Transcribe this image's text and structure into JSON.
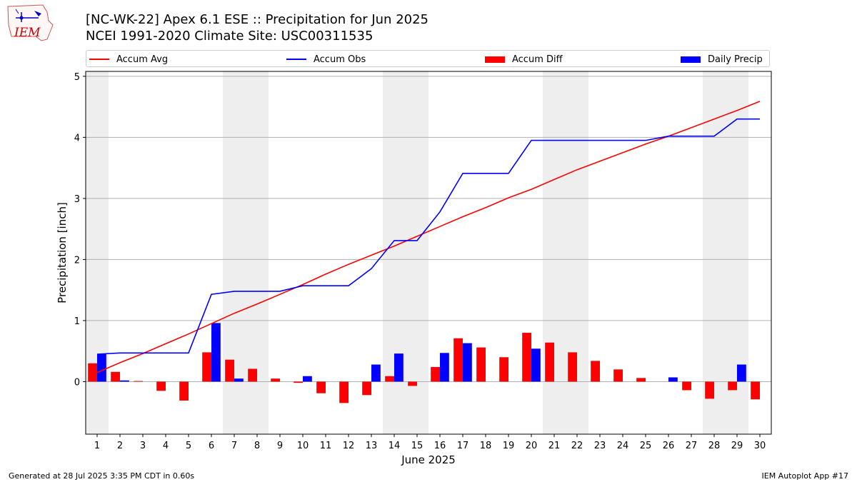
{
  "chart_data": {
    "type": "bar",
    "title": "[NC-WK-22] Apex 6.1 ESE :: Precipitation for Jun 2025",
    "subtitle": "NCEI 1991-2020 Climate Site: USC00311535",
    "xlabel": "June 2025",
    "ylabel": "Precipitation [inch]",
    "ylim": [
      -0.86,
      5.08
    ],
    "yticks": [
      0,
      1,
      2,
      3,
      4,
      5
    ],
    "categories": [
      "1",
      "2",
      "3",
      "4",
      "5",
      "6",
      "7",
      "8",
      "9",
      "10",
      "11",
      "12",
      "13",
      "14",
      "15",
      "16",
      "17",
      "18",
      "19",
      "20",
      "21",
      "22",
      "23",
      "24",
      "25",
      "26",
      "27",
      "28",
      "29",
      "30"
    ],
    "weekend_days": [
      1,
      7,
      8,
      14,
      15,
      21,
      22,
      28,
      29
    ],
    "grid": "horizontal",
    "legend_position": "top",
    "series": [
      {
        "name": "Accum Avg",
        "kind": "line",
        "color": "#ff0000",
        "values": [
          0.15,
          0.31,
          0.46,
          0.62,
          0.78,
          0.95,
          1.12,
          1.27,
          1.43,
          1.59,
          1.76,
          1.92,
          2.07,
          2.22,
          2.38,
          2.54,
          2.7,
          2.85,
          3.01,
          3.15,
          3.31,
          3.47,
          3.61,
          3.75,
          3.89,
          4.02,
          4.16,
          4.3,
          4.44,
          4.59
        ]
      },
      {
        "name": "Accum Obs",
        "kind": "line",
        "color": "#0000ff",
        "values": [
          0.45,
          0.47,
          0.47,
          0.47,
          0.47,
          1.43,
          1.48,
          1.48,
          1.48,
          1.57,
          1.57,
          1.57,
          1.85,
          2.31,
          2.31,
          2.78,
          3.41,
          3.41,
          3.41,
          3.95,
          3.95,
          3.95,
          3.95,
          3.95,
          3.95,
          4.02,
          4.02,
          4.02,
          4.3,
          4.3
        ]
      },
      {
        "name": "Accum Diff",
        "kind": "bar",
        "color": "#ff0000",
        "values": [
          0.3,
          0.16,
          0.01,
          -0.15,
          -0.31,
          0.48,
          0.36,
          0.21,
          0.05,
          -0.02,
          -0.19,
          -0.35,
          -0.22,
          0.09,
          -0.07,
          0.24,
          0.71,
          0.56,
          0.4,
          0.8,
          0.64,
          0.48,
          0.34,
          0.2,
          0.06,
          0.0,
          -0.14,
          -0.28,
          -0.14,
          -0.29
        ]
      },
      {
        "name": "Daily Precip",
        "kind": "bar",
        "color": "#0000ff",
        "values": [
          0.45,
          0.02,
          0,
          0,
          0,
          0.96,
          0.05,
          0,
          0,
          0.09,
          0,
          0,
          0.28,
          0.46,
          0,
          0.47,
          0.63,
          0,
          0,
          0.54,
          0,
          0,
          0,
          0,
          0,
          0.07,
          0,
          0,
          0.28,
          0
        ]
      }
    ]
  },
  "footer": {
    "left": "Generated at 28 Jul 2025 3:35 PM CDT in 0.60s",
    "right": "IEM Autoplot App #17"
  },
  "logo": {
    "text": "IEM",
    "color": "#cc0000"
  }
}
